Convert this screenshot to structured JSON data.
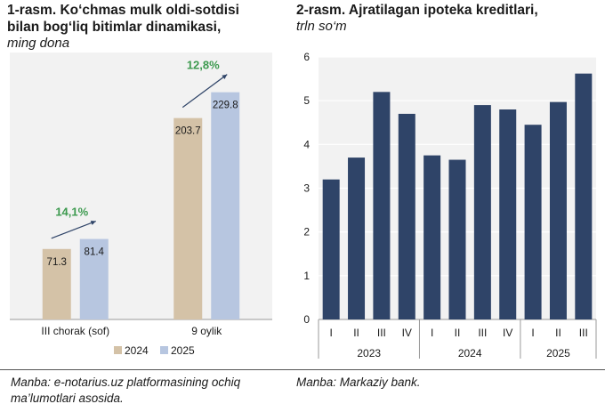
{
  "left": {
    "title_line1": "1-rasm. Ko‘chmas mulk oldi-sotdisi",
    "title_line2": "bilan bog‘liq bitimlar dinamikasi,",
    "subtitle": "ming dona",
    "source_line1": "Manba: e-notarius.uz platformasining ochiq",
    "source_line2": "ma’lumotlari asosida."
  },
  "right": {
    "title": "2-rasm. Ajratilagan ipoteka kreditlari,",
    "subtitle": "trln so‘m",
    "source": "Manba: Markaziy bank."
  },
  "chart_data": [
    {
      "type": "bar",
      "title": "1-rasm. Ko‘chmas mulk oldi-sotdisi bilan bog‘liq bitimlar dinamikasi,",
      "subtitle": "ming dona",
      "categories": [
        "III chorak (sof)",
        "9 oylik"
      ],
      "series": [
        {
          "name": "2024",
          "values": [
            71.3,
            203.7
          ],
          "color": "#d4c2a7"
        },
        {
          "name": "2025",
          "values": [
            81.4,
            229.8
          ],
          "color": "#b7c6e0"
        }
      ],
      "annotations": [
        {
          "category": "III chorak (sof)",
          "text": "14,1%",
          "color": "#3d9a4f"
        },
        {
          "category": "9 oylik",
          "text": "12,8%",
          "color": "#3d9a4f"
        }
      ],
      "ylim": [
        0,
        270
      ],
      "legend": "bottom",
      "grid": false,
      "background": "#f2f2f2"
    },
    {
      "type": "bar",
      "title": "2-rasm. Ajratilagan ipoteka kreditlari,",
      "subtitle": "trln so‘m",
      "categories": [
        "I",
        "II",
        "III",
        "IV",
        "I",
        "II",
        "III",
        "IV",
        "I",
        "II",
        "III"
      ],
      "groups": [
        {
          "label": "2023",
          "count": 4
        },
        {
          "label": "2024",
          "count": 4
        },
        {
          "label": "2025",
          "count": 3
        }
      ],
      "series": [
        {
          "values": [
            3.2,
            3.7,
            5.2,
            4.7,
            3.75,
            3.65,
            4.9,
            4.8,
            4.45,
            4.97,
            5.62
          ],
          "color": "#2f4468"
        }
      ],
      "ylim": [
        0,
        6
      ],
      "yticks": [
        0,
        1,
        2,
        3,
        4,
        5,
        6
      ],
      "grid": true,
      "background": "#f2f2f2"
    }
  ]
}
